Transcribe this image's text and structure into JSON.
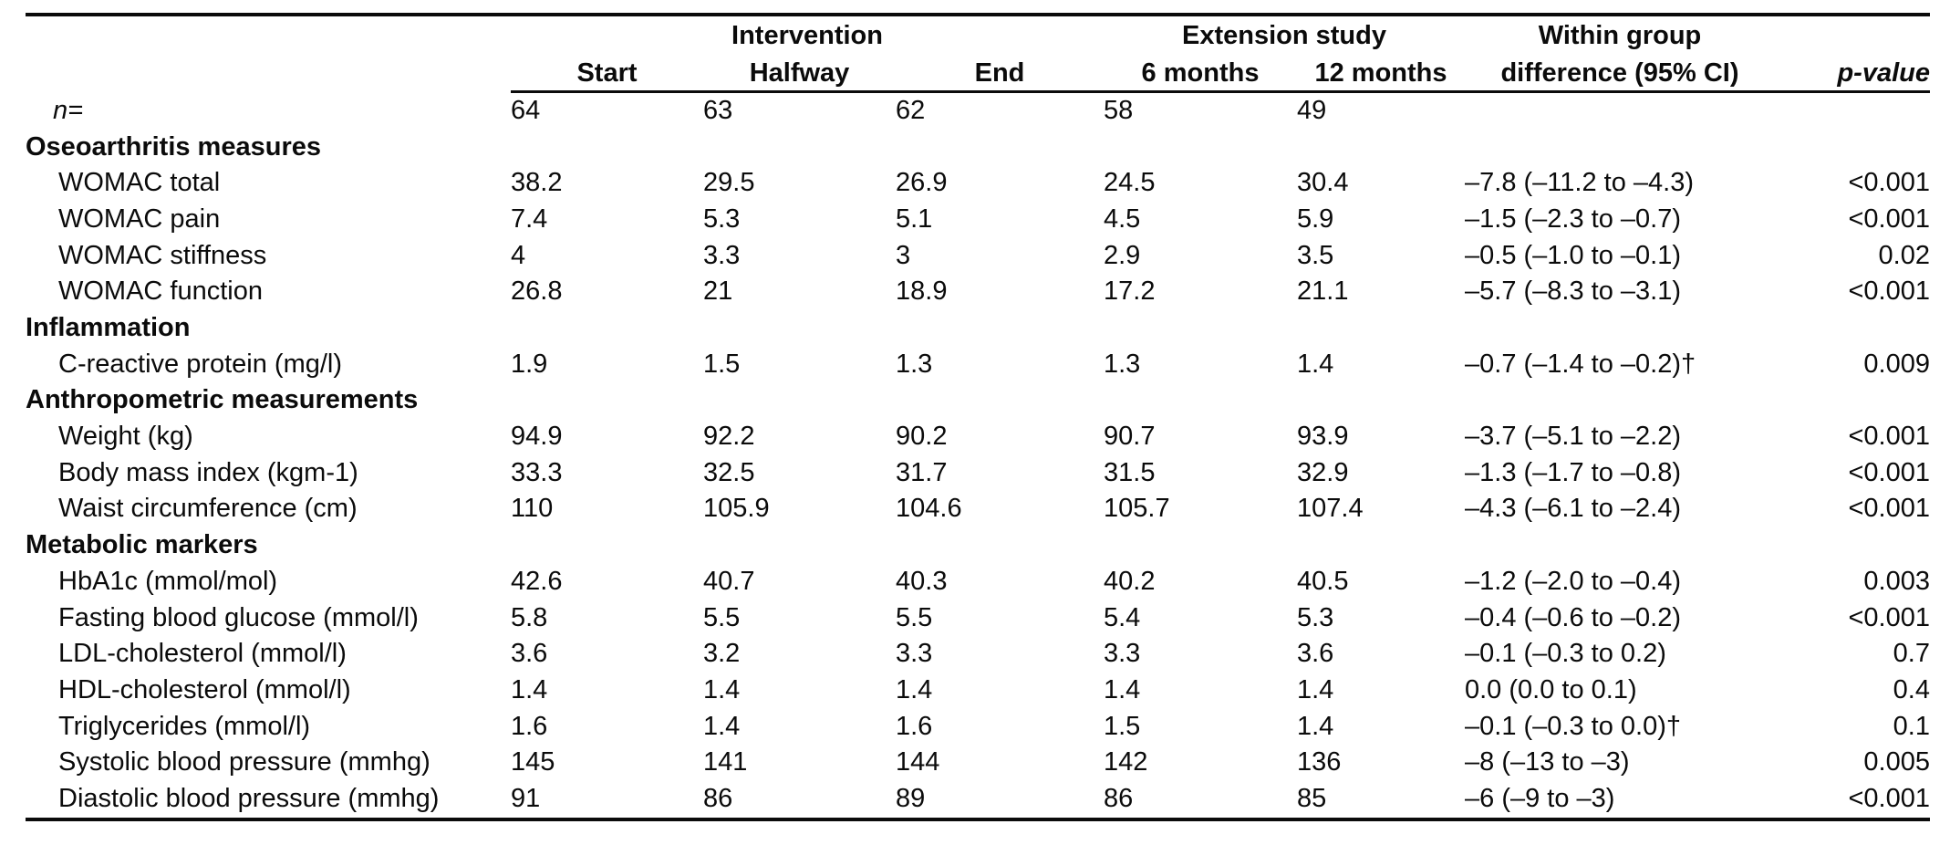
{
  "colors": {
    "background": "#ffffff",
    "text": "#0b0b0b",
    "rule": "#0b0b0b"
  },
  "table": {
    "header": {
      "intervention_group": "Intervention",
      "extension_group": "Extension study",
      "within_group_line1": "Within group",
      "within_group_line2": "difference (95% CI)",
      "columns": [
        "Start",
        "Halfway",
        "End",
        "6 months",
        "12 months"
      ],
      "p_value": "p-value"
    },
    "rows": [
      {
        "type": "n",
        "label": "n=",
        "values": [
          "64",
          "63",
          "62",
          "58",
          "49"
        ],
        "diff": "",
        "p": ""
      },
      {
        "type": "section",
        "label": "Oseoarthritis measures"
      },
      {
        "type": "data",
        "label": "WOMAC total",
        "values": [
          "38.2",
          "29.5",
          "26.9",
          "24.5",
          "30.4"
        ],
        "diff": "–7.8 (–11.2 to –4.3)",
        "p": "<0.001"
      },
      {
        "type": "data",
        "label": "WOMAC pain",
        "values": [
          "7.4",
          "5.3",
          "5.1",
          "4.5",
          "5.9"
        ],
        "diff": "–1.5 (–2.3 to –0.7)",
        "p": "<0.001"
      },
      {
        "type": "data",
        "label": "WOMAC stiffness",
        "values": [
          "4",
          "3.3",
          "3",
          "2.9",
          "3.5"
        ],
        "diff": "–0.5 (–1.0 to –0.1)",
        "p": "0.02"
      },
      {
        "type": "data",
        "label": "WOMAC function",
        "values": [
          "26.8",
          "21",
          "18.9",
          "17.2",
          "21.1"
        ],
        "diff": "–5.7 (–8.3 to –3.1)",
        "p": "<0.001"
      },
      {
        "type": "section",
        "label": "Inflammation"
      },
      {
        "type": "data",
        "label": "C-reactive protein (mg/l)",
        "values": [
          "1.9",
          "1.5",
          "1.3",
          "1.3",
          "1.4"
        ],
        "diff": "–0.7 (–1.4 to –0.2)†",
        "p": "0.009"
      },
      {
        "type": "section",
        "label": "Anthropometric measurements"
      },
      {
        "type": "data",
        "label": "Weight (kg)",
        "values": [
          "94.9",
          "92.2",
          "90.2",
          "90.7",
          "93.9"
        ],
        "diff": "–3.7 (–5.1 to –2.2)",
        "p": "<0.001"
      },
      {
        "type": "data",
        "label": "Body mass index (kgm-1)",
        "values": [
          "33.3",
          "32.5",
          "31.7",
          "31.5",
          "32.9"
        ],
        "diff": "–1.3 (–1.7 to –0.8)",
        "p": "<0.001"
      },
      {
        "type": "data",
        "label": "Waist circumference (cm)",
        "values": [
          "110",
          "105.9",
          "104.6",
          "105.7",
          "107.4"
        ],
        "diff": "–4.3 (–6.1 to –2.4)",
        "p": "<0.001"
      },
      {
        "type": "section",
        "label": "Metabolic markers"
      },
      {
        "type": "data",
        "label": "HbA1c (mmol/mol)",
        "values": [
          "42.6",
          "40.7",
          "40.3",
          "40.2",
          "40.5"
        ],
        "diff": "–1.2 (–2.0 to –0.4)",
        "p": "0.003"
      },
      {
        "type": "data",
        "label": "Fasting blood glucose (mmol/l)",
        "values": [
          "5.8",
          "5.5",
          "5.5",
          "5.4",
          "5.3"
        ],
        "diff": "–0.4 (–0.6 to –0.2)",
        "p": "<0.001"
      },
      {
        "type": "data",
        "label": "LDL-cholesterol (mmol/l)",
        "values": [
          "3.6",
          "3.2",
          "3.3",
          "3.3",
          "3.6"
        ],
        "diff": "–0.1 (–0.3 to 0.2)",
        "p": "0.7"
      },
      {
        "type": "data",
        "label": "HDL-cholesterol (mmol/l)",
        "values": [
          "1.4",
          "1.4",
          "1.4",
          "1.4",
          "1.4"
        ],
        "diff": "0.0 (0.0 to 0.1)",
        "p": "0.4"
      },
      {
        "type": "data",
        "label": "Triglycerides (mmol/l)",
        "values": [
          "1.6",
          "1.4",
          "1.6",
          "1.5",
          "1.4"
        ],
        "diff": "–0.1 (–0.3 to 0.0)†",
        "p": "0.1"
      },
      {
        "type": "data",
        "label": "Systolic blood pressure (mmhg)",
        "values": [
          "145",
          "141",
          "144",
          "142",
          "136"
        ],
        "diff": "–8 (–13 to –3)",
        "p": "0.005"
      },
      {
        "type": "data",
        "label": "Diastolic blood pressure (mmhg)",
        "values": [
          "91",
          "86",
          "89",
          "86",
          "85"
        ],
        "diff": "–6 (–9 to –3)",
        "p": "<0.001"
      }
    ]
  }
}
